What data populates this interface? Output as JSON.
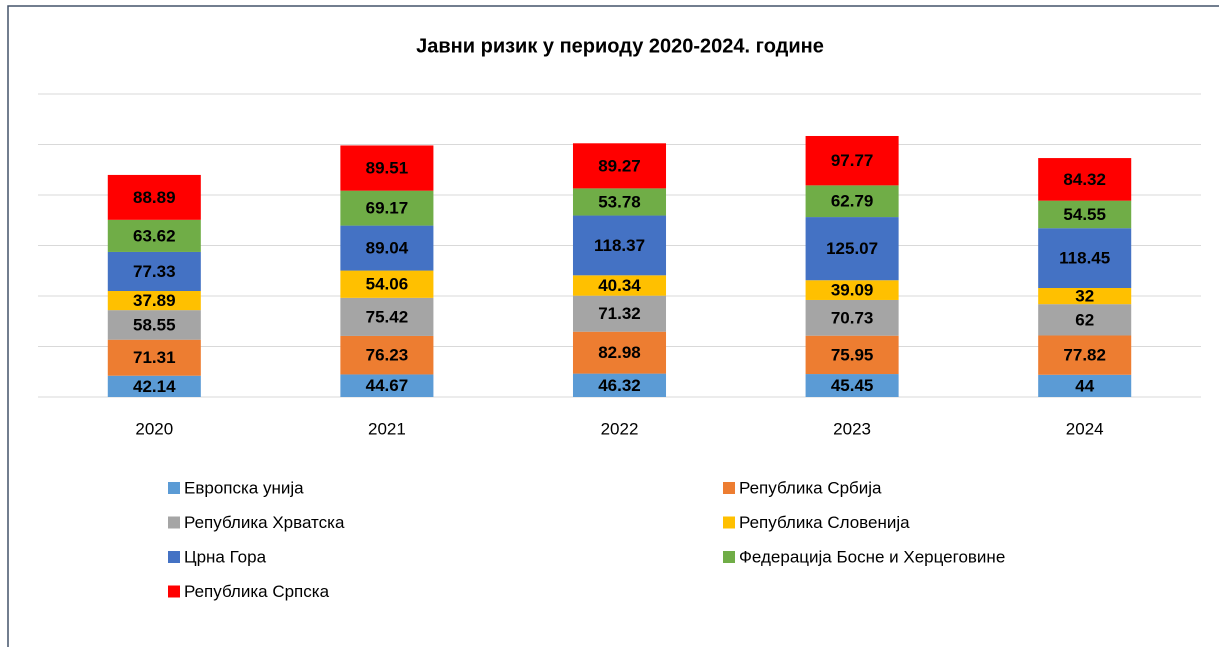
{
  "chart_data": {
    "type": "stacked-bar",
    "title": "Јавни ризик у периоду 2020-2024. године",
    "categories": [
      "2020",
      "2021",
      "2022",
      "2023",
      "2024"
    ],
    "series": [
      {
        "name": "Европска унија",
        "color": "#5b9bd5",
        "values": [
          42.14,
          44.67,
          46.32,
          45.45,
          44
        ]
      },
      {
        "name": "Република Србија",
        "color": "#ed7d31",
        "values": [
          71.31,
          76.23,
          82.98,
          75.95,
          77.82
        ]
      },
      {
        "name": "Република Хрватска",
        "color": "#a5a5a5",
        "values": [
          58.55,
          75.42,
          71.32,
          70.73,
          62
        ]
      },
      {
        "name": "Република Словенија",
        "color": "#ffc000",
        "values": [
          37.89,
          54.06,
          40.34,
          39.09,
          32
        ]
      },
      {
        "name": "Црна Гора",
        "color": "#4472c4",
        "values": [
          77.33,
          89.04,
          118.37,
          125.07,
          118.45
        ]
      },
      {
        "name": "Федерација Босне и Херцеговине",
        "color": "#70ad47",
        "values": [
          63.62,
          69.17,
          53.78,
          62.79,
          54.55
        ]
      },
      {
        "name": "Република Српска",
        "color": "#ff0000",
        "values": [
          88.89,
          89.51,
          89.27,
          97.77,
          84.32
        ]
      }
    ],
    "ylim": [
      0,
      600
    ],
    "yticks": [
      0,
      100,
      200,
      300,
      400,
      500,
      600
    ],
    "grid": true,
    "legend": "bottom"
  }
}
